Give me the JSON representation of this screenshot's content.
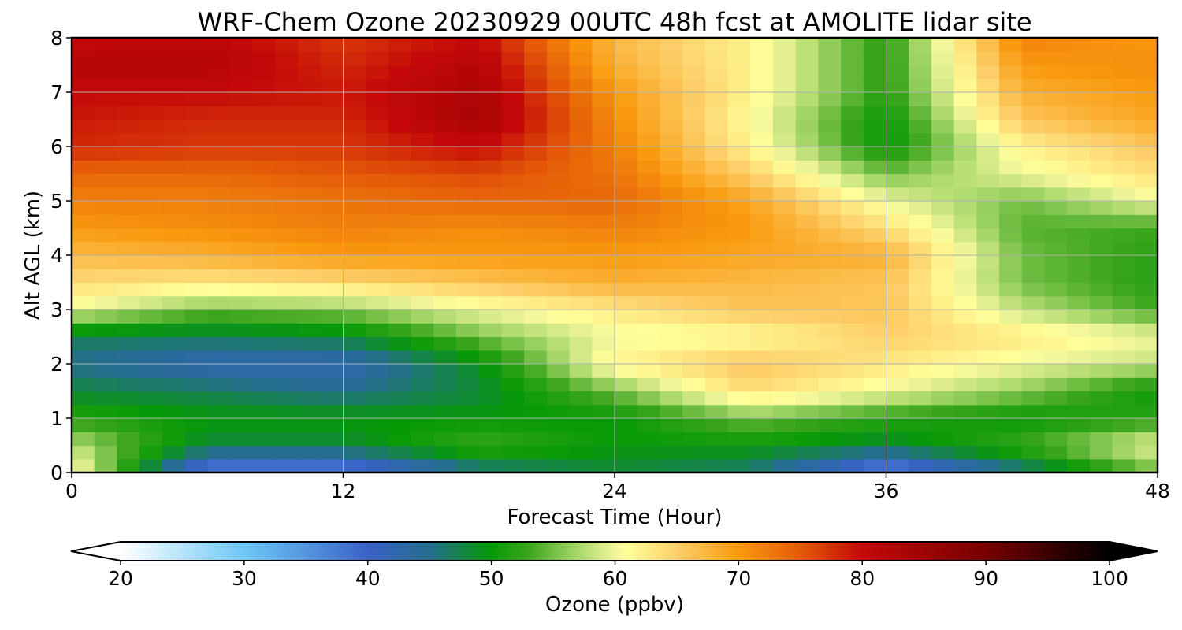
{
  "chart_data": {
    "type": "heatmap",
    "title": "WRF-Chem Ozone  20230929 00UTC 48h fcst at AMOLITE lidar site",
    "xlabel": "Forecast Time (Hour)",
    "ylabel": "Alt AGL (km)",
    "xlim": [
      0,
      48
    ],
    "ylim": [
      0,
      8
    ],
    "xticks": [
      0,
      12,
      24,
      36,
      48
    ],
    "yticks": [
      0,
      1,
      2,
      3,
      4,
      5,
      6,
      7,
      8
    ],
    "grid": true,
    "x": [
      0,
      6,
      12,
      18,
      24,
      30,
      36,
      42,
      48
    ],
    "y": [
      0,
      0.5,
      1,
      1.5,
      2,
      2.5,
      3,
      3.5,
      4,
      4.5,
      5,
      5.5,
      6,
      6.5,
      7,
      7.5,
      8
    ],
    "z": [
      [
        62,
        36,
        36,
        45,
        48,
        46,
        35,
        45,
        55
      ],
      [
        58,
        48,
        48,
        53,
        50,
        50,
        48,
        53,
        60
      ],
      [
        52,
        50,
        50,
        50,
        50,
        55,
        52,
        50,
        52
      ],
      [
        48,
        47,
        45,
        48,
        55,
        64,
        60,
        56,
        50
      ],
      [
        45,
        42,
        42,
        49,
        62,
        66,
        63,
        60,
        58
      ],
      [
        47,
        47,
        48,
        55,
        60,
        61,
        65,
        63,
        60
      ],
      [
        60,
        55,
        56,
        60,
        63,
        66,
        66,
        58,
        53
      ],
      [
        64,
        63,
        64,
        66,
        68,
        67,
        66,
        55,
        52
      ],
      [
        67,
        68,
        70,
        70,
        70,
        69,
        68,
        55,
        52
      ],
      [
        70,
        71,
        72,
        71,
        72,
        70,
        64,
        54,
        53
      ],
      [
        72,
        72,
        73,
        74,
        74,
        69,
        60,
        55,
        60
      ],
      [
        74,
        74,
        75,
        76,
        73,
        65,
        55,
        60,
        64
      ],
      [
        78,
        77,
        77,
        80,
        72,
        62,
        50,
        62,
        66
      ],
      [
        79,
        78,
        78,
        84,
        71,
        61,
        50,
        66,
        69
      ],
      [
        80,
        80,
        79,
        83,
        70,
        62,
        52,
        68,
        70
      ],
      [
        82,
        82,
        78,
        82,
        68,
        62,
        52,
        70,
        71
      ],
      [
        80,
        81,
        77,
        80,
        67,
        62,
        52,
        72,
        70
      ]
    ],
    "colorbar": {
      "label": "Ozone  (ppbv)",
      "min": 20,
      "max": 100,
      "ticks": [
        20,
        30,
        40,
        50,
        60,
        70,
        80,
        90,
        100
      ],
      "extend": "both",
      "stops": [
        {
          "v": 20,
          "c": "#ffffff"
        },
        {
          "v": 30,
          "c": "#6ec8f5"
        },
        {
          "v": 40,
          "c": "#3a62c8"
        },
        {
          "v": 45,
          "c": "#256e8f"
        },
        {
          "v": 50,
          "c": "#079a07"
        },
        {
          "v": 53,
          "c": "#3aa51c"
        },
        {
          "v": 57,
          "c": "#a9d86a"
        },
        {
          "v": 60,
          "c": "#f0f59a"
        },
        {
          "v": 61,
          "c": "#ffff99"
        },
        {
          "v": 65,
          "c": "#fdd06a"
        },
        {
          "v": 70,
          "c": "#f99a0e"
        },
        {
          "v": 75,
          "c": "#e45a08"
        },
        {
          "v": 80,
          "c": "#c40808"
        },
        {
          "v": 90,
          "c": "#770000"
        },
        {
          "v": 100,
          "c": "#000000"
        }
      ]
    }
  }
}
